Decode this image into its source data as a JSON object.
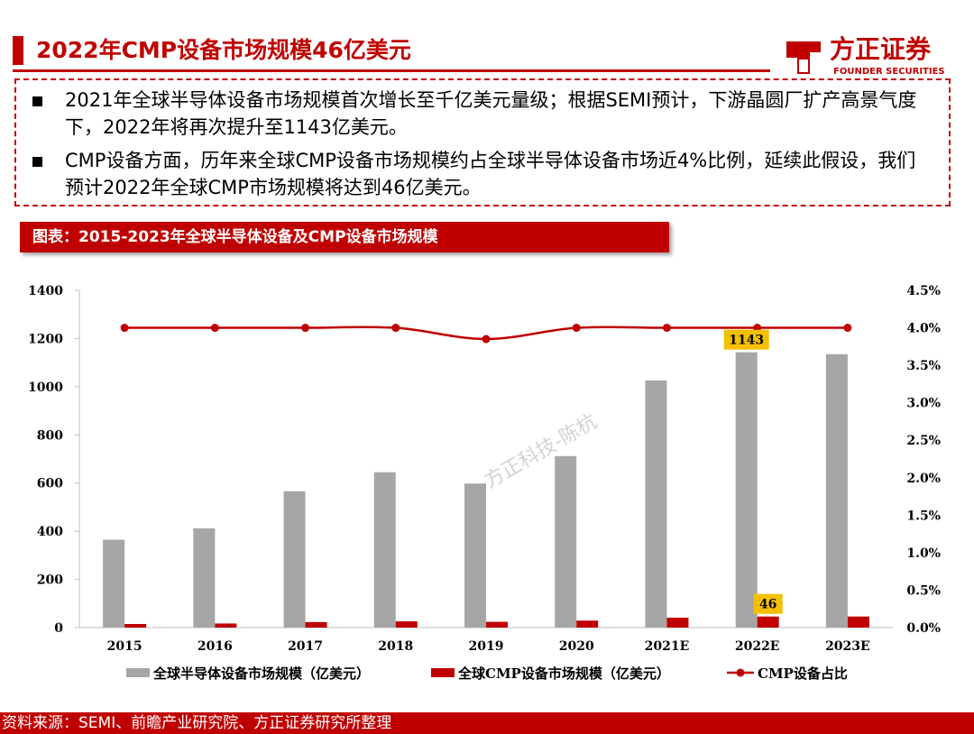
{
  "header": {
    "title": "2022年CMP设备市场规模46亿美元",
    "logo_cn": "方正证券",
    "logo_en": "FOUNDER SECURITIES",
    "accent_color": "#c00000"
  },
  "summary": {
    "bullets": [
      "2021年全球半导体设备市场规模首次增长至千亿美元量级；根据SEMI预计，下游晶圆厂扩产高景气度下，2022年将再次提升至1143亿美元。",
      "CMP设备方面，历年来全球CMP设备市场规模约占全球半导体设备市场近4%比例，延续此假设，我们预计2022年全球CMP市场规模将达到46亿美元。"
    ]
  },
  "figure": {
    "title": "图表：2015-2023年全球半导体设备及CMP设备市场规模"
  },
  "watermark": "方正科技-陈杭",
  "source": "资料来源：SEMI、前瞻产业研究院、方正证券研究所整理",
  "chart_data": {
    "type": "bar",
    "categories": [
      "2015",
      "2016",
      "2017",
      "2018",
      "2019",
      "2020",
      "2021E",
      "2022E",
      "2023E"
    ],
    "series": [
      {
        "name": "全球半导体设备市场规模（亿美元）",
        "type": "bar",
        "axis": "left",
        "color": "#a6a6a6",
        "values": [
          365,
          412,
          566,
          645,
          598,
          712,
          1026,
          1143,
          1135
        ]
      },
      {
        "name": "全球CMP设备市场规模（亿美元）",
        "type": "bar",
        "axis": "left",
        "color": "#c00000",
        "values": [
          15,
          17,
          23,
          26,
          24,
          29,
          41,
          46,
          46
        ]
      },
      {
        "name": "CMP设备占比",
        "type": "line",
        "axis": "right",
        "color": "#c00000",
        "values": [
          0.04,
          0.04,
          0.04,
          0.04,
          0.0385,
          0.04,
          0.04,
          0.04,
          0.04
        ]
      }
    ],
    "ylim": [
      0,
      1400
    ],
    "yticks": [
      "0",
      "200",
      "400",
      "600",
      "800",
      "1000",
      "1200",
      "1400"
    ],
    "y2lim": [
      0,
      0.045
    ],
    "y2ticks": [
      "0.0%",
      "0.5%",
      "1.0%",
      "1.5%",
      "2.0%",
      "2.5%",
      "3.0%",
      "3.5%",
      "4.0%",
      "4.5%"
    ],
    "annotations": [
      {
        "category": "2022E",
        "series": 0,
        "text": "1143",
        "color": "#f5c000"
      },
      {
        "category": "2022E",
        "series": 1,
        "text": "46",
        "color": "#f5c000"
      }
    ],
    "legend_position": "bottom"
  }
}
